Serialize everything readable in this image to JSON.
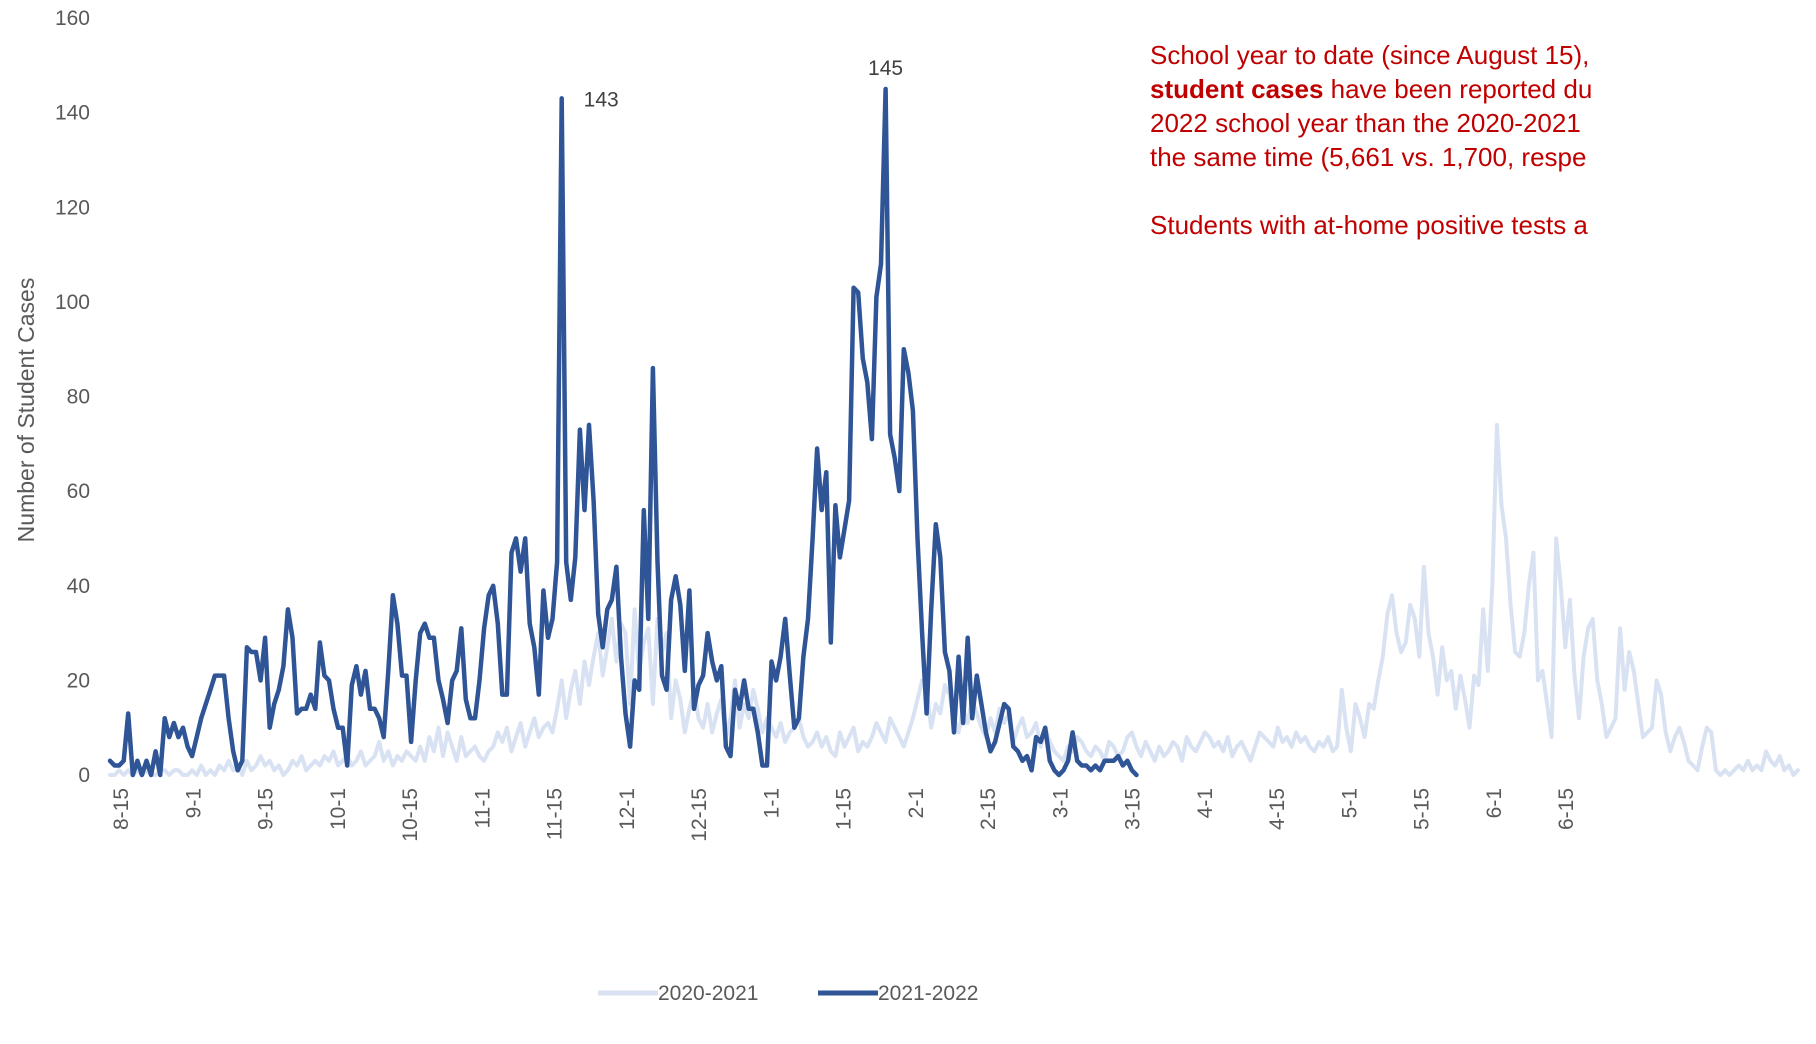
{
  "chart_data": {
    "type": "line",
    "title": "",
    "xlabel": "",
    "ylabel": "Number of Student Cases",
    "ylim": [
      0,
      160
    ],
    "yticks": [
      0,
      20,
      40,
      60,
      80,
      100,
      120,
      140,
      160
    ],
    "xticks": [
      "8-15",
      "9-1",
      "9-15",
      "10-1",
      "10-15",
      "11-1",
      "11-15",
      "12-1",
      "12-15",
      "1-1",
      "1-15",
      "2-1",
      "2-15",
      "3-1",
      "3-15",
      "4-1",
      "4-15",
      "5-1",
      "5-15",
      "6-1",
      "6-15"
    ],
    "legend": "bottom",
    "series": [
      {
        "name": "2020-2021",
        "color": "#d9e2f3",
        "values": [
          0,
          0,
          1,
          0,
          1,
          0,
          1,
          0,
          1,
          0,
          0,
          1,
          1,
          0,
          1,
          1,
          0,
          0,
          1,
          0,
          2,
          0,
          1,
          0,
          2,
          1,
          3,
          1,
          2,
          0,
          3,
          1,
          2,
          4,
          2,
          3,
          1,
          2,
          0,
          1,
          3,
          2,
          4,
          1,
          2,
          3,
          2,
          4,
          3,
          5,
          2,
          3,
          4,
          2,
          3,
          5,
          2,
          3,
          4,
          7,
          3,
          5,
          2,
          4,
          3,
          5,
          4,
          3,
          6,
          3,
          8,
          5,
          10,
          4,
          9,
          6,
          3,
          8,
          4,
          5,
          6,
          4,
          3,
          5,
          6,
          9,
          7,
          10,
          5,
          8,
          11,
          6,
          9,
          12,
          8,
          10,
          11,
          9,
          14,
          20,
          12,
          18,
          22,
          15,
          24,
          19,
          25,
          30,
          21,
          27,
          33,
          24,
          32,
          30,
          15,
          35,
          22,
          28,
          31,
          15,
          33,
          26,
          30,
          12,
          20,
          16,
          9,
          14,
          18,
          12,
          10,
          15,
          9,
          13,
          16,
          8,
          12,
          20,
          10,
          15,
          12,
          18,
          14,
          9,
          12,
          10,
          8,
          11,
          7,
          9,
          10,
          12,
          8,
          6,
          7,
          9,
          6,
          8,
          5,
          4,
          9,
          6,
          8,
          10,
          5,
          7,
          6,
          8,
          11,
          9,
          7,
          12,
          10,
          8,
          6,
          9,
          12,
          16,
          20,
          18,
          10,
          15,
          13,
          19,
          17,
          12,
          9,
          14,
          11,
          16,
          13,
          10,
          8,
          12,
          9,
          14,
          11,
          13,
          7,
          10,
          12,
          8,
          9,
          11,
          6,
          10,
          7,
          5,
          4,
          3,
          6,
          5,
          8,
          7,
          5,
          4,
          6,
          5,
          3,
          7,
          6,
          4,
          5,
          8,
          9,
          6,
          4,
          7,
          5,
          3,
          6,
          4,
          5,
          7,
          6,
          3,
          8,
          6,
          5,
          7,
          9,
          8,
          6,
          7,
          5,
          8,
          4,
          6,
          7,
          5,
          3,
          6,
          9,
          8,
          7,
          6,
          10,
          7,
          8,
          6,
          9,
          7,
          8,
          6,
          5,
          7,
          6,
          8,
          5,
          6,
          18,
          10,
          5,
          15,
          12,
          8,
          15,
          14,
          20,
          25,
          34,
          38,
          30,
          26,
          28,
          36,
          33,
          25,
          44,
          30,
          25,
          17,
          27,
          20,
          22,
          14,
          21,
          16,
          10,
          21,
          19,
          35,
          22,
          40,
          74,
          57,
          50,
          36,
          26,
          25,
          30,
          40,
          47,
          20,
          22,
          15,
          8,
          50,
          40,
          27,
          37,
          21,
          12,
          25,
          31,
          33,
          20,
          15,
          8,
          10,
          12,
          31,
          18,
          26,
          22,
          15,
          8,
          9,
          10,
          20,
          17,
          9,
          5,
          8,
          10,
          7,
          3,
          2,
          1,
          6,
          10,
          9,
          1,
          0,
          1,
          0,
          1,
          2,
          1,
          3,
          1,
          2,
          1,
          5,
          3,
          2,
          4,
          1,
          2,
          0,
          1
        ]
      },
      {
        "name": "2021-2022",
        "color": "#2f5597",
        "values": [
          3,
          2,
          2,
          3,
          13,
          0,
          3,
          0,
          3,
          0,
          5,
          0,
          12,
          8,
          11,
          8,
          10,
          6,
          4,
          8,
          12,
          15,
          18,
          21,
          21,
          21,
          12,
          5,
          1,
          3,
          27,
          26,
          26,
          20,
          29,
          10,
          15,
          18,
          23,
          35,
          29,
          13,
          14,
          14,
          17,
          14,
          28,
          21,
          20,
          14,
          10,
          10,
          2,
          19,
          23,
          17,
          22,
          14,
          14,
          12,
          8,
          22,
          38,
          32,
          21,
          21,
          7,
          20,
          30,
          32,
          29,
          29,
          20,
          16,
          11,
          20,
          22,
          31,
          16,
          12,
          12,
          20,
          31,
          38,
          40,
          32,
          17,
          17,
          47,
          50,
          43,
          50,
          32,
          27,
          17,
          39,
          29,
          33,
          45,
          143,
          45,
          37,
          46,
          73,
          56,
          74,
          58,
          34,
          27,
          35,
          37,
          44,
          25,
          13,
          6,
          20,
          18,
          56,
          33,
          86,
          45,
          21,
          18,
          37,
          42,
          36,
          22,
          39,
          14,
          19,
          21,
          30,
          24,
          20,
          23,
          6,
          4,
          18,
          14,
          20,
          14,
          14,
          9,
          2,
          2,
          24,
          20,
          25,
          33,
          21,
          10,
          12,
          25,
          33,
          50,
          69,
          56,
          64,
          28,
          57,
          46,
          52,
          58,
          103,
          102,
          88,
          83,
          71,
          101,
          108,
          145,
          72,
          67,
          60,
          90,
          85,
          77,
          50,
          30,
          13,
          35,
          53,
          46,
          26,
          22,
          9,
          25,
          11,
          29,
          12,
          21,
          15,
          9,
          5,
          7,
          11,
          15,
          14,
          6,
          5,
          3,
          4,
          1,
          8,
          7,
          10,
          3,
          1,
          0,
          1,
          3,
          9,
          3,
          2,
          2,
          1,
          2,
          1,
          3,
          3,
          3,
          4,
          2,
          3,
          1,
          0
        ]
      }
    ],
    "annotations": [
      {
        "series": "2021-2022",
        "label": "143"
      },
      {
        "series": "2021-2022",
        "label": "145"
      }
    ]
  },
  "text_panel": {
    "line1": "School year to date (since August 15),",
    "line2_bold": "student cases",
    "line2_rest": " have been reported du",
    "line3": "2022 school year than the 2020-2021",
    "line4": "the same time (5,661 vs. 1,700, respe",
    "line5": "Students with at-home positive tests a"
  }
}
